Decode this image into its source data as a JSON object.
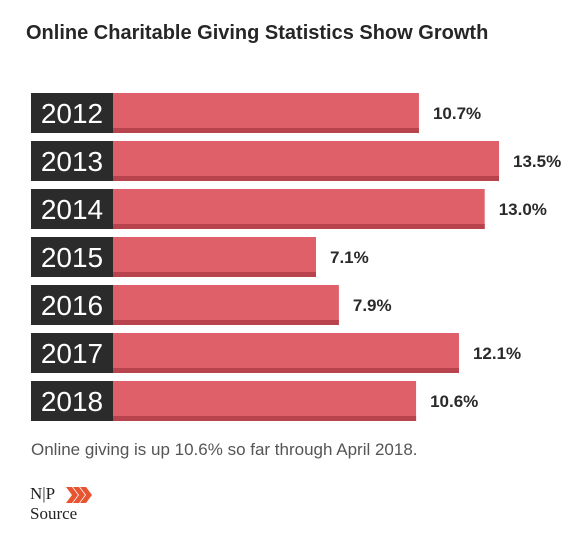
{
  "title": "Online Charitable Giving Statistics Show Growth",
  "footnote": "Online giving is up 10.6% so far through April 2018.",
  "logo": {
    "line1": "N|P",
    "line2": "Source"
  },
  "colors": {
    "bar": "#e0606a",
    "bar_shadow": "#b8434c",
    "year_box": "#2b2b2b",
    "year_text": "#ffffff",
    "logo_accent": "#e8542f"
  },
  "chart_data": {
    "type": "bar",
    "orientation": "horizontal",
    "title": "Online Charitable Giving Statistics Show Growth",
    "xlabel": "",
    "ylabel": "",
    "grid": false,
    "categories": [
      "2012",
      "2013",
      "2014",
      "2015",
      "2016",
      "2017",
      "2018"
    ],
    "values": [
      10.7,
      13.5,
      13.0,
      7.1,
      7.9,
      12.1,
      10.6
    ],
    "labels": [
      "10.7%",
      "13.5%",
      "13.0%",
      "7.1%",
      "7.9%",
      "12.1%",
      "10.6%"
    ]
  }
}
